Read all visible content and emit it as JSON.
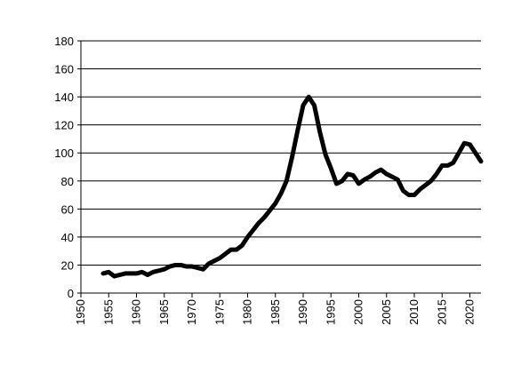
{
  "chart_data": {
    "type": "line",
    "title": "",
    "xlabel": "",
    "ylabel": "",
    "xlim": [
      1950,
      2022
    ],
    "ylim": [
      0,
      180
    ],
    "x_ticks": [
      1950,
      1955,
      1960,
      1965,
      1970,
      1975,
      1980,
      1985,
      1990,
      1995,
      2000,
      2005,
      2010,
      2015,
      2020
    ],
    "y_ticks": [
      0,
      20,
      40,
      60,
      80,
      100,
      120,
      140,
      160,
      180
    ],
    "grid": "horizontal",
    "legend": "none",
    "series_color": "#000000",
    "series": [
      {
        "x": [
          1954,
          1955,
          1956,
          1957,
          1958,
          1959,
          1960,
          1961,
          1962,
          1963,
          1964,
          1965,
          1966,
          1967,
          1968,
          1969,
          1970,
          1971,
          1972,
          1973,
          1974,
          1975,
          1976,
          1977,
          1978,
          1979,
          1980,
          1981,
          1982,
          1983,
          1984,
          1985,
          1986,
          1987,
          1988,
          1989,
          1990,
          1991,
          1992,
          1993,
          1994,
          1995,
          1996,
          1997,
          1998,
          1999,
          2000,
          2001,
          2002,
          2003,
          2004,
          2005,
          2006,
          2007,
          2008,
          2009,
          2010,
          2011,
          2012,
          2013,
          2014,
          2015,
          2016,
          2017,
          2018,
          2019,
          2020,
          2021,
          2022
        ],
        "y": [
          14,
          15,
          12,
          13,
          14,
          14,
          14,
          15,
          13,
          15,
          16,
          17,
          19,
          20,
          20,
          19,
          19,
          18,
          17,
          21,
          23,
          25,
          28,
          31,
          31,
          34,
          40,
          45,
          50,
          54,
          59,
          64,
          71,
          80,
          97,
          116,
          134,
          140,
          134,
          115,
          99,
          89,
          78,
          80,
          85,
          84,
          78,
          81,
          83,
          86,
          88,
          85,
          83,
          81,
          73,
          70,
          70,
          74,
          77,
          80,
          85,
          91,
          91,
          93,
          100,
          107,
          106,
          100,
          94
        ]
      }
    ]
  }
}
